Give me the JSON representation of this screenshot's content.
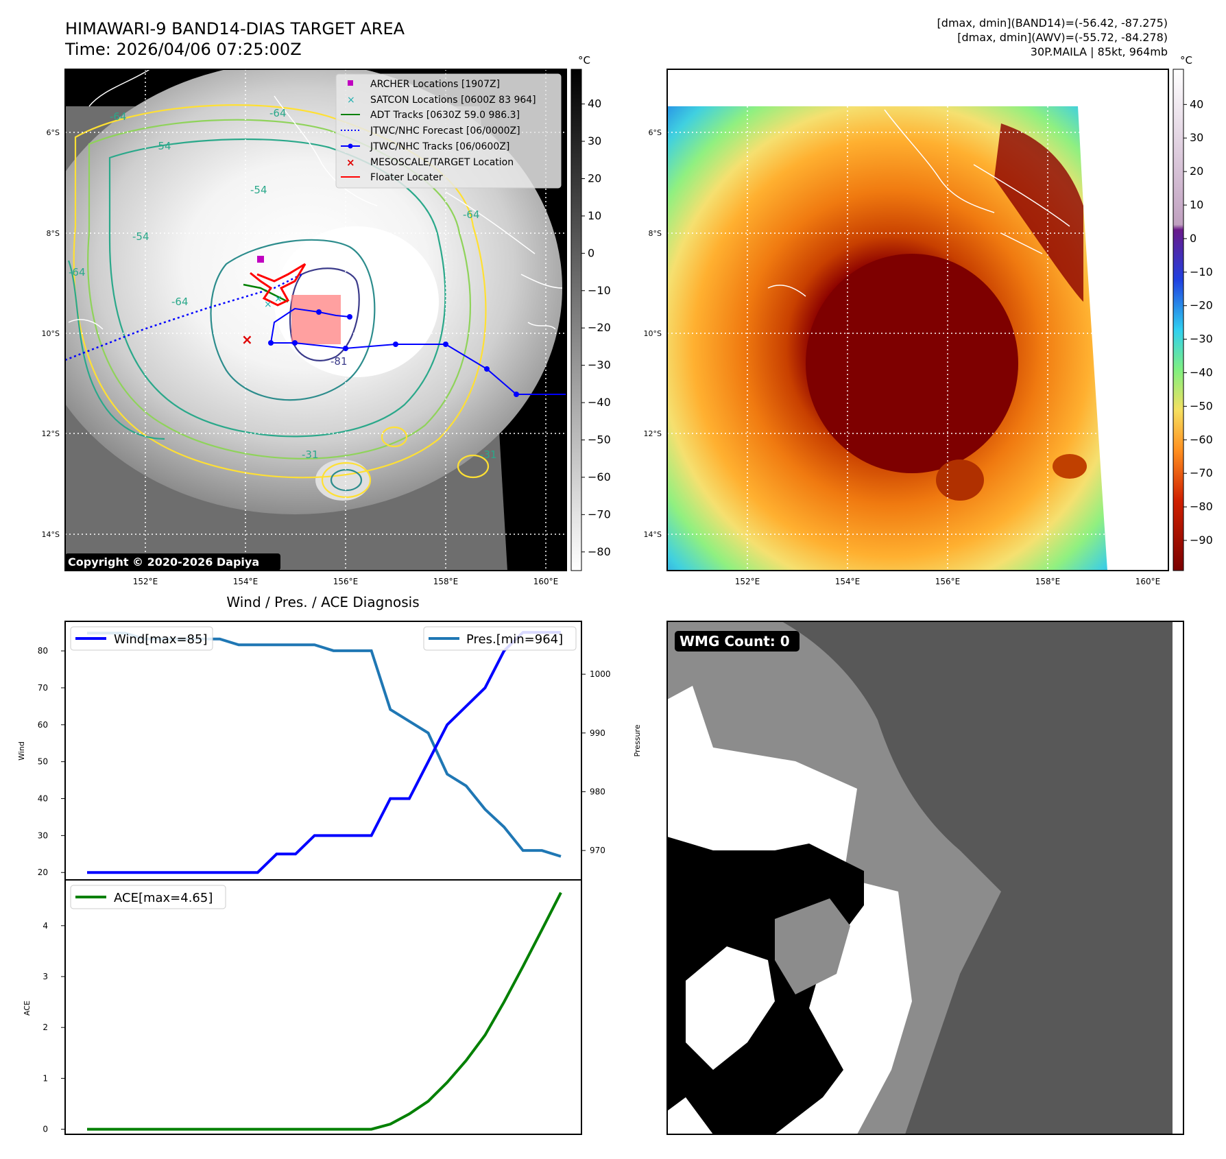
{
  "header": {
    "title": "HIMAWARI-9 BAND14-DIAS TARGET AREA",
    "time": "Time: 2026/04/06 07:25:00Z",
    "range_band14": "[dmax, dmin](BAND14)=(-56.42, -87.275)",
    "range_awv": "[dmax, dmin](AWV)=(-55.72, -84.278)",
    "storm": "30P.MAILA | 85kt, 964mb"
  },
  "map": {
    "lat_labels": [
      "6°S",
      "8°S",
      "10°S",
      "12°S",
      "14°S"
    ],
    "lon_labels": [
      "152°E",
      "154°E",
      "156°E",
      "158°E",
      "160°E"
    ],
    "copyright": "Copyright © 2020-2026 Dapiya",
    "contour_labels": [
      "-64",
      "-54",
      "-64",
      "-54",
      "-54",
      "-64",
      "-64",
      "-81",
      "-31",
      "-31",
      "-64"
    ]
  },
  "legend": {
    "items": [
      {
        "label": "ARCHER Locations [1907Z]",
        "color": "#c000c0",
        "marker": "square"
      },
      {
        "label": "SATCON Locations [0600Z 83 964]",
        "color": "#20b0b0",
        "marker": "x"
      },
      {
        "label": "ADT Tracks [0630Z 59.0 986.3]",
        "color": "#008000",
        "marker": "line"
      },
      {
        "label": "JTWC/NHC Forecast [06/0000Z]",
        "color": "#0000ff",
        "marker": "dotted"
      },
      {
        "label": "JTWC/NHC Tracks [06/0600Z]",
        "color": "#0000ff",
        "marker": "line-dot"
      },
      {
        "label": "MESOSCALE/TARGET Location",
        "color": "#e00000",
        "marker": "x"
      },
      {
        "label": "Floater Locater",
        "color": "#ff0000",
        "marker": "line"
      }
    ]
  },
  "colorbar_gray": {
    "unit": "°C",
    "ticks": [
      "40",
      "30",
      "20",
      "10",
      "0",
      "−10",
      "−20",
      "−30",
      "−40",
      "−50",
      "−60",
      "−70",
      "−80"
    ]
  },
  "colorbar_color": {
    "unit": "°C",
    "ticks": [
      "40",
      "30",
      "20",
      "10",
      "0",
      "−10",
      "−20",
      "−30",
      "−40",
      "−50",
      "−60",
      "−70",
      "−80",
      "−90"
    ]
  },
  "diag": {
    "title": "Wind / Pres. / ACE Diagnosis",
    "wind_legend": "Wind[max=85]",
    "pres_legend": "Pres.[min=964]",
    "ace_legend": "ACE[max=4.65]",
    "wind_axis": "Wind",
    "pres_axis": "Pressure",
    "ace_axis": "ACE",
    "wind_ticks": [
      "20",
      "30",
      "40",
      "50",
      "60",
      "70",
      "80"
    ],
    "pres_ticks": [
      "970",
      "980",
      "990",
      "1000"
    ],
    "ace_ticks": [
      "0",
      "1",
      "2",
      "3",
      "4"
    ]
  },
  "wmg": {
    "label": "WMG Count: 0"
  },
  "chart_data": [
    {
      "type": "line",
      "title": "Wind / Pres. / ACE Diagnosis",
      "x": [
        0,
        1,
        2,
        3,
        4,
        5,
        6,
        7,
        8,
        9,
        10,
        11,
        12,
        13,
        14,
        15,
        16,
        17,
        18,
        19,
        20,
        21,
        22,
        23,
        24,
        25
      ],
      "series": [
        {
          "name": "Wind[max=85]",
          "axis": "Wind",
          "color": "#0000ff",
          "values": [
            20,
            20,
            20,
            20,
            20,
            20,
            20,
            20,
            20,
            20,
            25,
            25,
            30,
            30,
            30,
            30,
            40,
            40,
            50,
            60,
            65,
            70,
            80,
            85,
            85,
            85
          ]
        },
        {
          "name": "Pres.[min=964]",
          "axis": "Pressure",
          "color": "#1f77b4",
          "values": [
            1007,
            1007,
            1007,
            1006,
            1006,
            1006,
            1006,
            1006,
            1005,
            1005,
            1005,
            1005,
            1005,
            1004,
            1004,
            1004,
            994,
            992,
            990,
            983,
            981,
            977,
            974,
            970,
            970,
            969
          ]
        }
      ],
      "ylim_wind": [
        18,
        88
      ],
      "ylim_pressure": [
        965,
        1009
      ]
    },
    {
      "type": "line",
      "x": [
        0,
        1,
        2,
        3,
        4,
        5,
        6,
        7,
        8,
        9,
        10,
        11,
        12,
        13,
        14,
        15,
        16,
        17,
        18,
        19,
        20,
        21,
        22,
        23,
        24,
        25
      ],
      "series": [
        {
          "name": "ACE[max=4.65]",
          "axis": "ACE",
          "color": "#008000",
          "values": [
            0,
            0,
            0,
            0,
            0,
            0,
            0,
            0,
            0,
            0,
            0,
            0,
            0,
            0,
            0,
            0,
            0.1,
            0.3,
            0.55,
            0.92,
            1.35,
            1.85,
            2.5,
            3.2,
            3.92,
            4.65
          ]
        }
      ],
      "ylim": [
        -0.1,
        4.9
      ]
    }
  ]
}
